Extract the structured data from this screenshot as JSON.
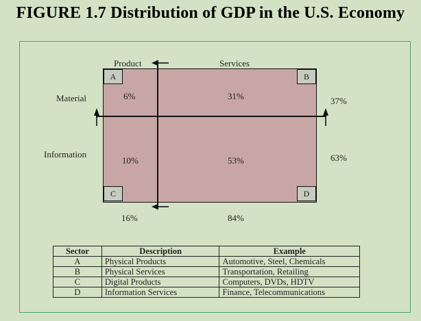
{
  "title": "FIGURE 1.7 Distribution of GDP in the U.S. Economy",
  "axes": {
    "product": "Product",
    "services": "Services",
    "material": "Material",
    "information": "Information"
  },
  "quadrants": {
    "a": {
      "letter": "A",
      "value": "6%"
    },
    "b": {
      "letter": "B",
      "value": "31%"
    },
    "c": {
      "letter": "C",
      "value": "10%"
    },
    "d": {
      "letter": "D",
      "value": "53%"
    }
  },
  "totals": {
    "material": "37%",
    "information": "63%",
    "product": "16%",
    "services": "84%"
  },
  "table": {
    "headers": {
      "sector": "Sector",
      "description": "Description",
      "example": "Example"
    },
    "rows": [
      {
        "sector": "A",
        "description": "Physical Products",
        "example": "Automotive, Steel, Chemicals"
      },
      {
        "sector": "B",
        "description": "Physical Services",
        "example": "Transportation, Retailing"
      },
      {
        "sector": "C",
        "description": "Digital Products",
        "example": "Computers, DVDs, HDTV"
      },
      {
        "sector": "D",
        "description": "Information Services",
        "example": "Finance, Telecommunications"
      }
    ]
  }
}
